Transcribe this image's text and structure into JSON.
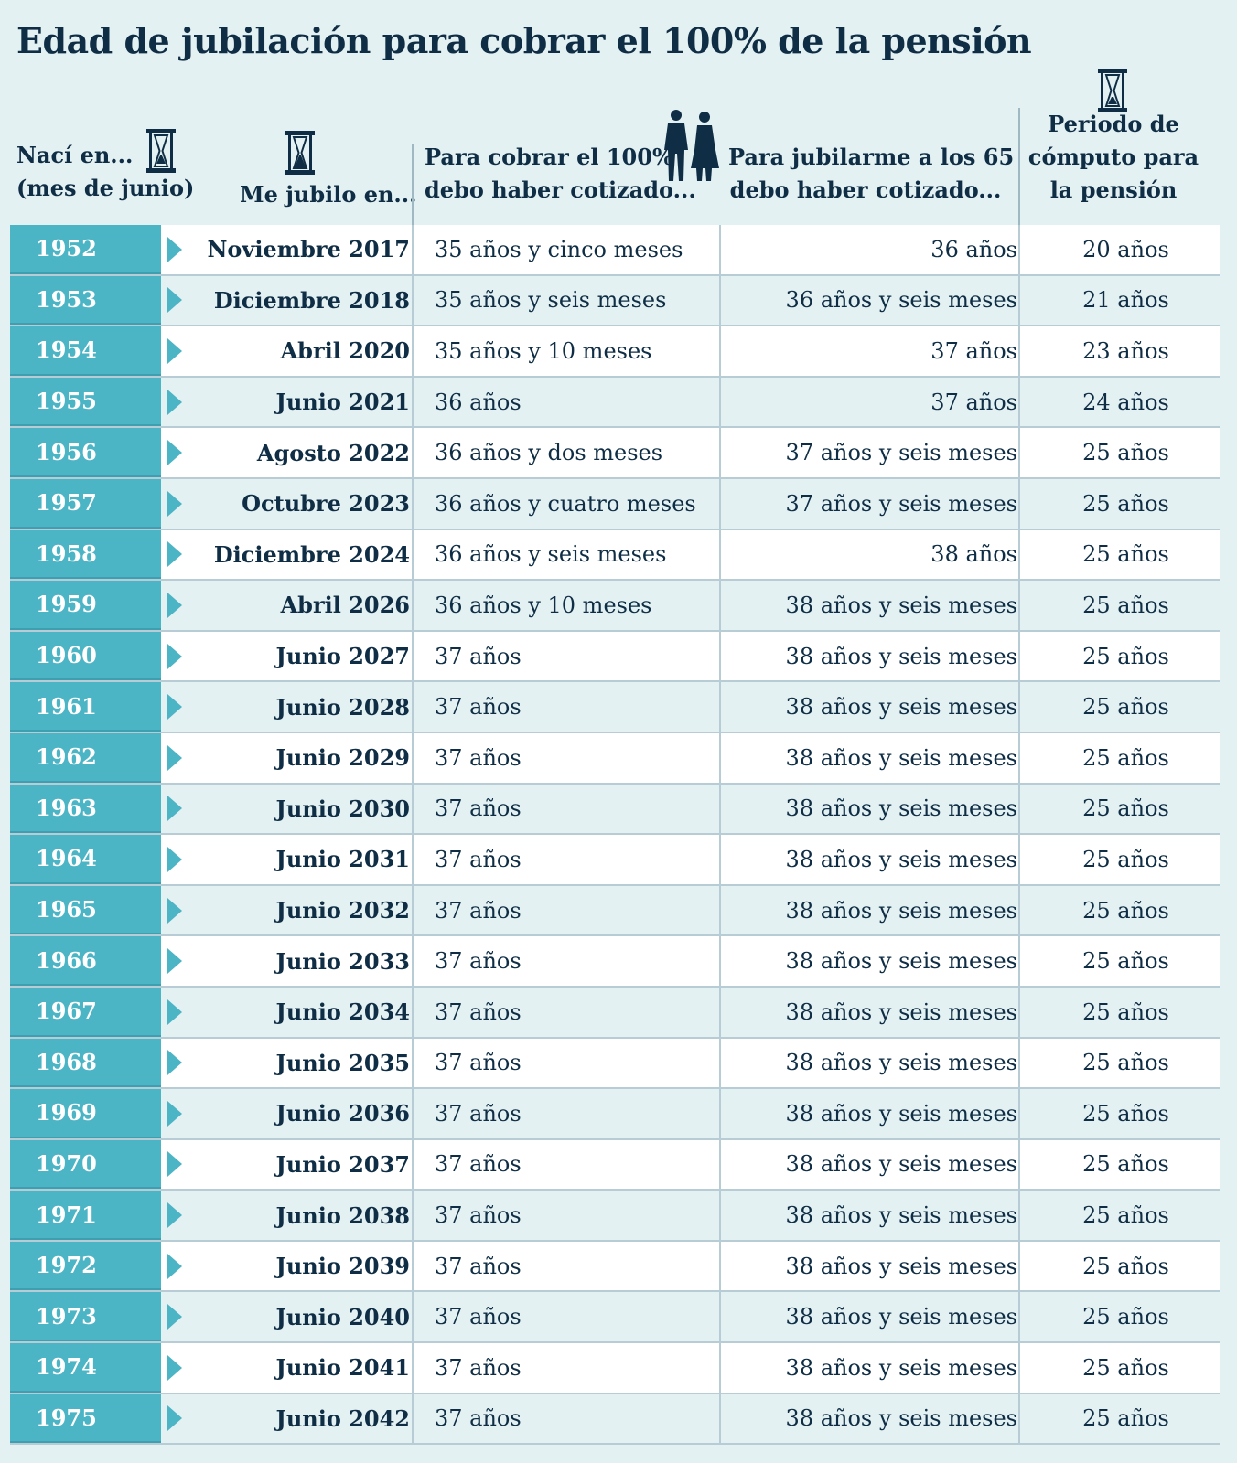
{
  "title": "Edad de jubilación para cobrar el 100% de la pensión",
  "header": {
    "col_born_line1": "Nací en...",
    "col_born_line2": "(mes de junio)",
    "col_retire": "Me jubilo en...",
    "col_full_line1": "Para cobrar el 100%",
    "col_full_line2": "debo haber cotizado...",
    "col_65_line1": "Para jubilarme a los 65",
    "col_65_line2": "debo haber cotizado...",
    "col_period_line1": "Periodo de",
    "col_period_line2": "cómputo para",
    "col_period_line3": "la pensión"
  },
  "colors": {
    "accent": "#4bb4c5",
    "text": "#0f2e45",
    "background": "#e4f1f3"
  },
  "rows": [
    {
      "year": "1952",
      "retire": "Noviembre 2017",
      "full": "35 años y cinco meses",
      "at65": "36 años",
      "period": "20 años"
    },
    {
      "year": "1953",
      "retire": "Diciembre 2018",
      "full": "35 años y seis meses",
      "at65": "36 años y seis meses",
      "period": "21 años"
    },
    {
      "year": "1954",
      "retire": "Abril 2020",
      "full": "35 años y 10 meses",
      "at65": "37 años",
      "period": "23 años"
    },
    {
      "year": "1955",
      "retire": "Junio 2021",
      "full": "36 años",
      "at65": "37 años",
      "period": "24 años"
    },
    {
      "year": "1956",
      "retire": "Agosto 2022",
      "full": "36 años y dos meses",
      "at65": "37 años y seis meses",
      "period": "25 años"
    },
    {
      "year": "1957",
      "retire": "Octubre 2023",
      "full": "36 años y cuatro meses",
      "at65": "37 años y seis meses",
      "period": "25 años"
    },
    {
      "year": "1958",
      "retire": "Diciembre 2024",
      "full": "36 años y seis meses",
      "at65": "38 años",
      "period": "25 años"
    },
    {
      "year": "1959",
      "retire": "Abril 2026",
      "full": "36 años y 10 meses",
      "at65": "38 años y seis meses",
      "period": "25 años"
    },
    {
      "year": "1960",
      "retire": "Junio 2027",
      "full": "37 años",
      "at65": "38 años y seis meses",
      "period": "25 años"
    },
    {
      "year": "1961",
      "retire": "Junio 2028",
      "full": "37 años",
      "at65": "38 años y seis meses",
      "period": "25 años"
    },
    {
      "year": "1962",
      "retire": "Junio 2029",
      "full": "37 años",
      "at65": "38 años y seis meses",
      "period": "25 años"
    },
    {
      "year": "1963",
      "retire": "Junio 2030",
      "full": "37 años",
      "at65": "38 años y seis meses",
      "period": "25 años"
    },
    {
      "year": "1964",
      "retire": "Junio 2031",
      "full": "37 años",
      "at65": "38 años y seis meses",
      "period": "25 años"
    },
    {
      "year": "1965",
      "retire": "Junio 2032",
      "full": "37 años",
      "at65": "38 años y seis meses",
      "period": "25 años"
    },
    {
      "year": "1966",
      "retire": "Junio 2033",
      "full": "37 años",
      "at65": "38 años y seis meses",
      "period": "25 años"
    },
    {
      "year": "1967",
      "retire": "Junio 2034",
      "full": "37 años",
      "at65": "38 años y seis meses",
      "period": "25 años"
    },
    {
      "year": "1968",
      "retire": "Junio 2035",
      "full": "37 años",
      "at65": "38 años y seis meses",
      "period": "25 años"
    },
    {
      "year": "1969",
      "retire": "Junio 2036",
      "full": "37 años",
      "at65": "38 años y seis meses",
      "period": "25 años"
    },
    {
      "year": "1970",
      "retire": "Junio 2037",
      "full": "37 años",
      "at65": "38 años y seis meses",
      "period": "25 años"
    },
    {
      "year": "1971",
      "retire": "Junio 2038",
      "full": "37 años",
      "at65": "38 años y seis meses",
      "period": "25 años"
    },
    {
      "year": "1972",
      "retire": "Junio 2039",
      "full": "37 años",
      "at65": "38 años y seis meses",
      "period": "25 años"
    },
    {
      "year": "1973",
      "retire": "Junio 2040",
      "full": "37 años",
      "at65": "38 años y seis meses",
      "period": "25 años"
    },
    {
      "year": "1974",
      "retire": "Junio 2041",
      "full": "37 años",
      "at65": "38 años y seis meses",
      "period": "25 años"
    },
    {
      "year": "1975",
      "retire": "Junio 2042",
      "full": "37 años",
      "at65": "38 años y seis meses",
      "period": "25 años"
    }
  ]
}
